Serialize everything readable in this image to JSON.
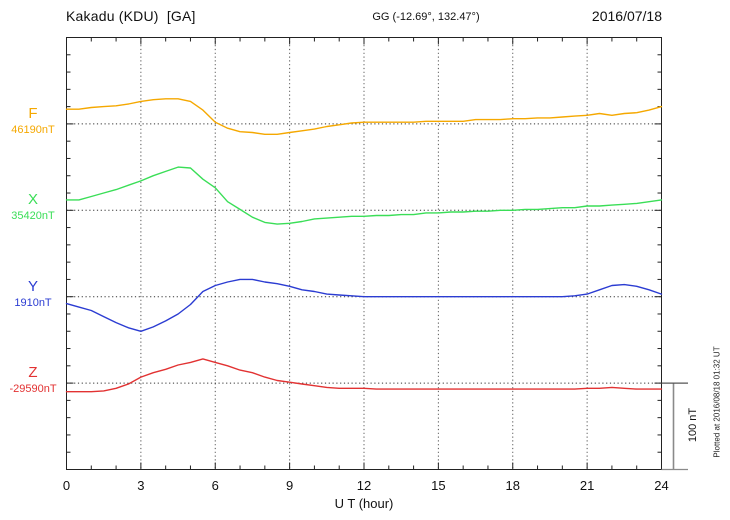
{
  "header": {
    "station": "Kakadu (KDU)  [GA]",
    "coords": "GG (-12.69°, 132.47°)",
    "date": "2016/07/18"
  },
  "footer": {
    "xlabel": "U T (hour)",
    "scale_label": "100 nT",
    "plotted_at": "Plotted at 2016/08/18 01:32 UT"
  },
  "chart_data": {
    "type": "line",
    "title": "Kakadu (KDU) [GA] magnetogram 2016/07/18",
    "xlabel": "U T (hour)",
    "xlim": [
      0,
      24
    ],
    "x_ticks": [
      0,
      3,
      6,
      9,
      12,
      15,
      18,
      21,
      24
    ],
    "x_minor_step_hours": 1,
    "x_start": 0,
    "x_step": 0.5,
    "grid": "dotted vertical lines every 3 h; dotted horizontal baseline per component",
    "scale_bar_nT": 100,
    "y_tick_step_nT": 20,
    "baseline_spacing_nT": 100,
    "series": [
      {
        "name": "F",
        "baseline_label": "46190nT",
        "baseline_nT": 46190,
        "color": "#F5A800",
        "offsets_nT": [
          17,
          17,
          19,
          20,
          21,
          23,
          26,
          28,
          29,
          29,
          26,
          16,
          2,
          -5,
          -9,
          -10,
          -12,
          -12,
          -10,
          -8,
          -6,
          -3,
          -1,
          1,
          2,
          2,
          2,
          2,
          2,
          3,
          3,
          3,
          3,
          5,
          5,
          5,
          6,
          6,
          7,
          7,
          8,
          9,
          10,
          12,
          10,
          12,
          13,
          16,
          20
        ]
      },
      {
        "name": "X",
        "baseline_label": "35420nT",
        "baseline_nT": 35420,
        "color": "#3ADE57",
        "offsets_nT": [
          12,
          12,
          16,
          20,
          24,
          29,
          34,
          40,
          45,
          50,
          49,
          36,
          26,
          10,
          1,
          -8,
          -14,
          -16,
          -15,
          -13,
          -10,
          -9,
          -8,
          -7,
          -7,
          -6,
          -6,
          -5,
          -5,
          -3,
          -3,
          -2,
          -2,
          -1,
          -1,
          0,
          0,
          1,
          1,
          2,
          3,
          3,
          5,
          5,
          6,
          7,
          8,
          10,
          12
        ]
      },
      {
        "name": "Y",
        "baseline_label": "1910nT",
        "baseline_nT": 1910,
        "color": "#2B3CD2",
        "offsets_nT": [
          -8,
          -12,
          -16,
          -23,
          -30,
          -36,
          -40,
          -35,
          -28,
          -20,
          -9,
          6,
          13,
          17,
          20,
          20,
          17,
          15,
          12,
          8,
          6,
          3,
          2,
          1,
          0,
          0,
          0,
          0,
          0,
          0,
          0,
          0,
          0,
          0,
          0,
          0,
          0,
          0,
          0,
          0,
          0,
          1,
          3,
          8,
          13,
          14,
          12,
          8,
          3
        ]
      },
      {
        "name": "Z",
        "baseline_label": "-29590nT",
        "baseline_nT": -29590,
        "color": "#E23232",
        "offsets_nT": [
          -10,
          -10,
          -10,
          -9,
          -6,
          -1,
          7,
          12,
          16,
          21,
          24,
          28,
          24,
          20,
          15,
          12,
          7,
          3,
          1,
          -1,
          -3,
          -5,
          -6,
          -6,
          -6,
          -7,
          -7,
          -7,
          -7,
          -7,
          -7,
          -7,
          -7,
          -7,
          -7,
          -7,
          -7,
          -7,
          -7,
          -7,
          -7,
          -7,
          -6,
          -6,
          -5,
          -6,
          -7,
          -7,
          -7
        ]
      }
    ]
  }
}
